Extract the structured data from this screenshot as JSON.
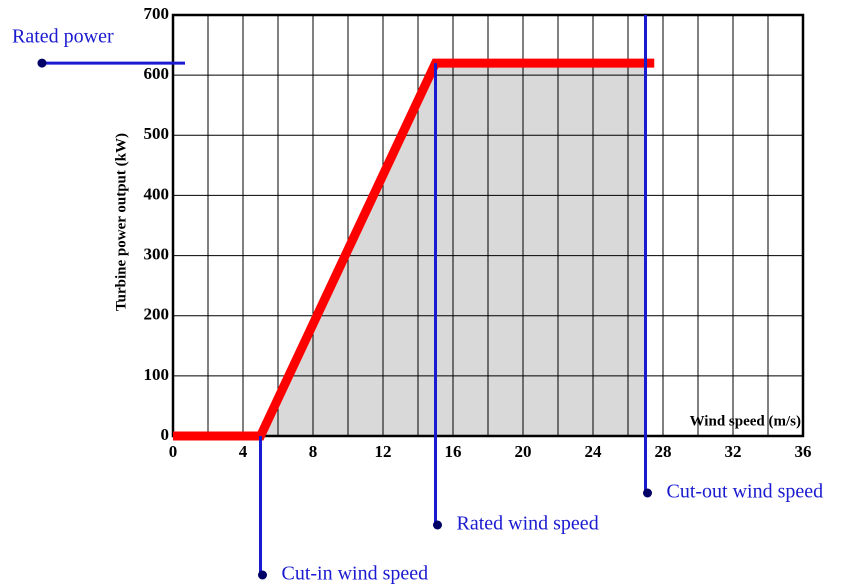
{
  "chart_data": {
    "type": "line",
    "ylabel": "Turbine power output (kW)",
    "xlabel": "Wind speed  (m/s)",
    "x": [
      0,
      5,
      15,
      27.5
    ],
    "series": [
      {
        "color": "#ff0000",
        "values": [
          0,
          0,
          620,
          620
        ]
      }
    ],
    "fill_x": [
      5,
      15,
      27
    ],
    "fill_values": [
      0,
      620,
      620
    ],
    "fill_color": "#d9d9d9",
    "xlim": [
      0,
      36
    ],
    "ylim": [
      0,
      700
    ],
    "xticks": [
      0,
      4,
      8,
      12,
      16,
      20,
      24,
      28,
      32,
      36
    ],
    "yticks": [
      0,
      100,
      200,
      300,
      400,
      500,
      600,
      700
    ],
    "xminor": [
      2,
      6,
      10,
      14,
      18,
      22,
      26,
      30,
      34
    ],
    "grid": true,
    "annotations": [
      {
        "text": "Rated power",
        "axis": "y",
        "value": 620
      },
      {
        "text": "Cut-in wind speed",
        "axis": "x",
        "value": 5
      },
      {
        "text": "Rated wind speed",
        "axis": "x",
        "value": 15
      },
      {
        "text": "Cut-out wind speed",
        "axis": "x",
        "value": 27
      }
    ],
    "annotation_color": "#1a1ad0"
  }
}
